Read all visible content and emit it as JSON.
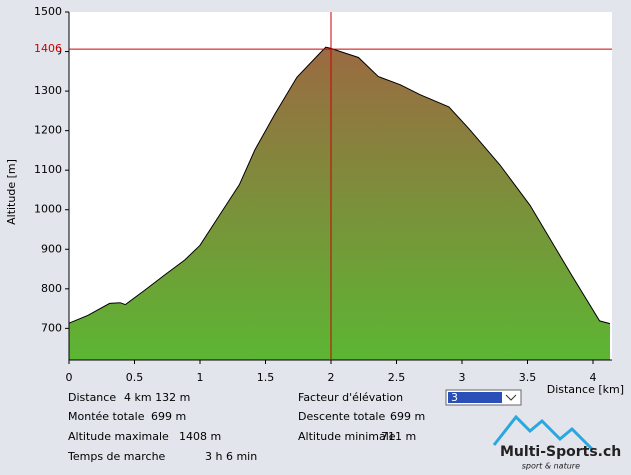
{
  "chart_data": {
    "type": "area",
    "y_label": "Altitude [m]",
    "x_label": "Distance [km]",
    "xlim": [
      0,
      4.145
    ],
    "ylim": [
      620,
      1500
    ],
    "xticks": [
      0,
      0.5,
      1,
      1.5,
      2,
      2.5,
      3,
      3.5,
      4
    ],
    "yticks": [
      700,
      800,
      900,
      1000,
      1100,
      1200,
      1300,
      1400,
      1500
    ],
    "crosshair": {
      "x": 2,
      "y": 1406,
      "color": "#cc0000"
    },
    "fill_top": "#9b6a42",
    "fill_bottom": "#5cb633",
    "line_color": "#000000",
    "x": [
      0,
      0.145,
      0.31,
      0.39,
      0.43,
      0.58,
      0.73,
      0.885,
      1.0,
      1.15,
      1.3,
      1.42,
      1.57,
      1.74,
      1.91,
      1.96,
      2.0,
      2.07,
      2.21,
      2.36,
      2.53,
      2.68,
      2.9,
      3.06,
      3.29,
      3.52,
      3.84,
      4.05,
      4.13
    ],
    "values": [
      713,
      733,
      763,
      765,
      760,
      797,
      835,
      873,
      910,
      987,
      1063,
      1152,
      1241,
      1335,
      1394,
      1411,
      1408,
      1400,
      1385,
      1337,
      1316,
      1291,
      1260,
      1202,
      1113,
      1011,
      833,
      719,
      712
    ]
  },
  "info": [
    {
      "label": "Distance",
      "value": "4 km 132 m"
    },
    {
      "label": "Montée totale",
      "value": "699 m"
    },
    {
      "label": "Altitude maximale",
      "value": "1408 m"
    },
    {
      "label": "Temps de marche",
      "value": "3 h 6 min"
    },
    {
      "label": "Facteur d'élévation",
      "value": "3"
    },
    {
      "label": "Descente totale",
      "value": "699 m"
    },
    {
      "label": "Altitude minimale",
      "value": "711 m"
    }
  ],
  "logo": {
    "name": "Multi-Sports.ch",
    "tagline": "sport & nature"
  }
}
